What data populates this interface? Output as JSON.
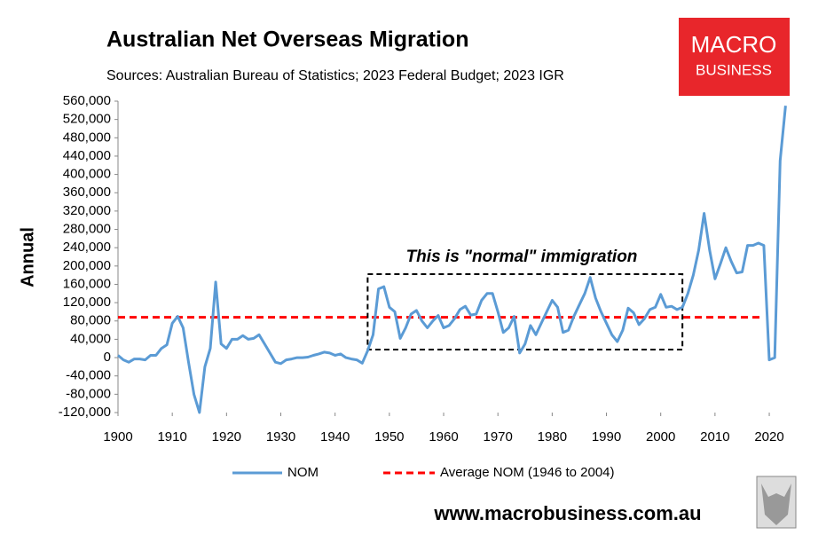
{
  "chart_data": {
    "type": "line",
    "title": "Australian Net Overseas Migration",
    "subtitle": "Sources: Australian Bureau of Statistics; 2023 Federal Budget; 2023 IGR",
    "y_label": "Annual",
    "annotation": "This is \"normal\" immigration",
    "logo": [
      "MACRO",
      "BUSINESS"
    ],
    "footer": "www.macrobusiness.com.au",
    "x": [
      1900,
      1901,
      1902,
      1903,
      1904,
      1905,
      1906,
      1907,
      1908,
      1909,
      1910,
      1911,
      1912,
      1913,
      1914,
      1915,
      1916,
      1917,
      1918,
      1919,
      1920,
      1921,
      1922,
      1923,
      1924,
      1925,
      1926,
      1927,
      1928,
      1929,
      1930,
      1931,
      1932,
      1933,
      1934,
      1935,
      1936,
      1937,
      1938,
      1939,
      1940,
      1941,
      1942,
      1943,
      1944,
      1945,
      1946,
      1947,
      1948,
      1949,
      1950,
      1951,
      1952,
      1953,
      1954,
      1955,
      1956,
      1957,
      1958,
      1959,
      1960,
      1961,
      1962,
      1963,
      1964,
      1965,
      1966,
      1967,
      1968,
      1969,
      1970,
      1971,
      1972,
      1973,
      1974,
      1975,
      1976,
      1977,
      1978,
      1979,
      1980,
      1981,
      1982,
      1983,
      1984,
      1985,
      1986,
      1987,
      1988,
      1989,
      1990,
      1991,
      1992,
      1993,
      1994,
      1995,
      1996,
      1997,
      1998,
      1999,
      2000,
      2001,
      2002,
      2003,
      2004,
      2005,
      2006,
      2007,
      2008,
      2009,
      2010,
      2011,
      2012,
      2013,
      2014,
      2015,
      2016,
      2017,
      2018,
      2019,
      2020,
      2021,
      2022,
      2023
    ],
    "series": [
      {
        "name": "NOM",
        "color": "#5b9bd5",
        "values": [
          5000,
          -5000,
          -10000,
          -3000,
          -3000,
          -5000,
          5000,
          5000,
          20000,
          28000,
          75000,
          90000,
          65000,
          -10000,
          -80000,
          -120000,
          -20000,
          20000,
          165000,
          30000,
          20000,
          40000,
          40000,
          48000,
          40000,
          42000,
          50000,
          30000,
          10000,
          -10000,
          -13000,
          -5000,
          -3000,
          0,
          0,
          1000,
          5000,
          8000,
          12000,
          10000,
          5000,
          8000,
          0,
          -3000,
          -5000,
          -12000,
          15000,
          50000,
          150000,
          155000,
          110000,
          100000,
          42000,
          65000,
          95000,
          103000,
          80000,
          65000,
          80000,
          92000,
          65000,
          70000,
          85000,
          105000,
          112000,
          93000,
          95000,
          125000,
          140000,
          140000,
          100000,
          55000,
          65000,
          90000,
          10000,
          30000,
          70000,
          50000,
          75000,
          100000,
          125000,
          110000,
          55000,
          60000,
          90000,
          115000,
          140000,
          175000,
          130000,
          100000,
          75000,
          50000,
          35000,
          60000,
          108000,
          98000,
          72000,
          85000,
          105000,
          110000,
          138000,
          110000,
          112000,
          105000,
          110000,
          140000,
          180000,
          235000,
          315000,
          235000,
          172000,
          205000,
          240000,
          210000,
          185000,
          187000,
          245000,
          245000,
          250000,
          245000,
          -5000,
          0,
          430000,
          550000
        ]
      }
    ],
    "average": {
      "name": "Average NOM (1946 to 2004)",
      "value": 88000,
      "color": "#ff0000",
      "from": 1946,
      "to": 2004
    },
    "xlim": [
      1900,
      2024
    ],
    "xticks": [
      1900,
      1910,
      1920,
      1930,
      1940,
      1950,
      1960,
      1970,
      1980,
      1990,
      2000,
      2010,
      2020
    ],
    "ylim": [
      -120000,
      560000
    ],
    "yticks": [
      {
        "value": -120000,
        "label": "-120,000"
      },
      {
        "value": -80000,
        "label": "-80,000"
      },
      {
        "value": -40000,
        "label": "-40,000"
      },
      0,
      {
        "value": 40000,
        "label": "40,000"
      },
      {
        "value": 80000,
        "label": "80,000"
      },
      {
        "value": 120000,
        "label": "120,000"
      },
      {
        "value": 160000,
        "label": "160,000"
      },
      {
        "value": 200000,
        "label": "200,000"
      },
      {
        "value": 240000,
        "label": "240,000"
      },
      {
        "value": 280000,
        "label": "280,000"
      },
      {
        "value": 320000,
        "label": "320,000"
      },
      {
        "value": 360000,
        "label": "360,000"
      },
      {
        "value": 400000,
        "label": "400,000"
      },
      {
        "value": 440000,
        "label": "440,000"
      },
      {
        "value": 480000,
        "label": "480,000"
      },
      {
        "value": 520000,
        "label": "520,000"
      },
      {
        "value": 560000,
        "label": "560,000"
      }
    ],
    "grid": false
  }
}
